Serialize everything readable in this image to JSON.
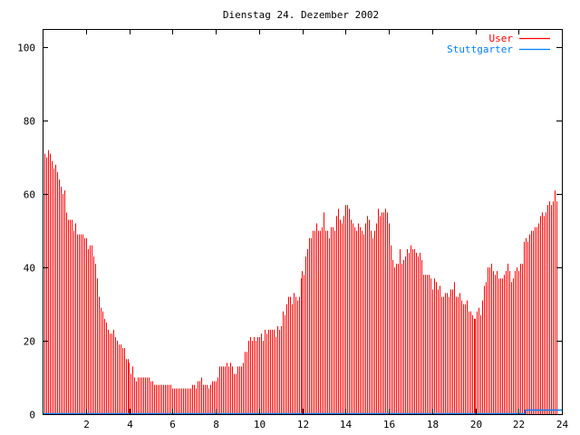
{
  "chart_data": {
    "type": "bar",
    "title": "Dienstag 24. Dezember 2002",
    "xlabel": "",
    "ylabel": "",
    "xlim": [
      0,
      24
    ],
    "ylim": [
      0,
      105
    ],
    "x_step_hours": 0.0833333,
    "xticks": [
      "2",
      "4",
      "6",
      "8",
      "10",
      "12",
      "14",
      "16",
      "18",
      "20",
      "22",
      "24"
    ],
    "yticks": [
      "0",
      "20",
      "40",
      "60",
      "80",
      "100"
    ],
    "grid": false,
    "legend_position": "top-right",
    "colors": {
      "User": "#ff0000",
      "Stuttgarter": "#0080ff",
      "axis": "#000000"
    },
    "series": [
      {
        "name": "User",
        "style": "impulses",
        "values": [
          73,
          71,
          70,
          72,
          71,
          69,
          67,
          68,
          66,
          64,
          62,
          60,
          61,
          55,
          53,
          53,
          53,
          50,
          52,
          49,
          49,
          49,
          49,
          48,
          48,
          45,
          46,
          46,
          43,
          41,
          37,
          32,
          29,
          28,
          26,
          25,
          23,
          22,
          22,
          23,
          21,
          20,
          19,
          19,
          18,
          18,
          15,
          15,
          14,
          11,
          13,
          10,
          9,
          10,
          10,
          10,
          10,
          10,
          10,
          10,
          9,
          9,
          8,
          8,
          8,
          8,
          8,
          8,
          8,
          8,
          8,
          8,
          7,
          7,
          7,
          7,
          7,
          7,
          7,
          7,
          7,
          7,
          7,
          8,
          8,
          7,
          9,
          9,
          10,
          8,
          8,
          8,
          7,
          8,
          9,
          9,
          9,
          10,
          13,
          13,
          13,
          13,
          14,
          13,
          14,
          13,
          11,
          11,
          13,
          13,
          13,
          14,
          17,
          17,
          20,
          21,
          20,
          21,
          20,
          21,
          21,
          22,
          20,
          23,
          22,
          23,
          23,
          23,
          23,
          21,
          24,
          23,
          24,
          28,
          27,
          30,
          32,
          32,
          30,
          33,
          32,
          31,
          32,
          37,
          39,
          38,
          43,
          45,
          48,
          48,
          50,
          50,
          52,
          50,
          50,
          51,
          55,
          50,
          50,
          48,
          51,
          51,
          50,
          54,
          56,
          53,
          52,
          54,
          57,
          57,
          56,
          53,
          52,
          51,
          50,
          52,
          51,
          50,
          49,
          52,
          54,
          53,
          50,
          48,
          50,
          52,
          56,
          54,
          55,
          55,
          56,
          55,
          52,
          46,
          42,
          40,
          41,
          41,
          45,
          41,
          42,
          43,
          45,
          44,
          46,
          45,
          45,
          44,
          43,
          44,
          42,
          38,
          38,
          38,
          38,
          37,
          34,
          37,
          36,
          34,
          35,
          32,
          32,
          33,
          33,
          32,
          34,
          34,
          36,
          32,
          32,
          33,
          31,
          30,
          30,
          31,
          28,
          28,
          27,
          26,
          26,
          28,
          29,
          27,
          31,
          35,
          36,
          40,
          40,
          41,
          39,
          38,
          39,
          37,
          37,
          37,
          38,
          39,
          41,
          39,
          36,
          37,
          39,
          40,
          39,
          41,
          41,
          47,
          48,
          47,
          49,
          50,
          50,
          51,
          51,
          52,
          54,
          55,
          54,
          55,
          57,
          58,
          57,
          58,
          61,
          58
        ]
      },
      {
        "name": "Stuttgarter",
        "style": "line",
        "x": [
          0,
          22.3,
          22.3,
          24
        ],
        "values": [
          0,
          0,
          1,
          1
        ]
      }
    ]
  }
}
